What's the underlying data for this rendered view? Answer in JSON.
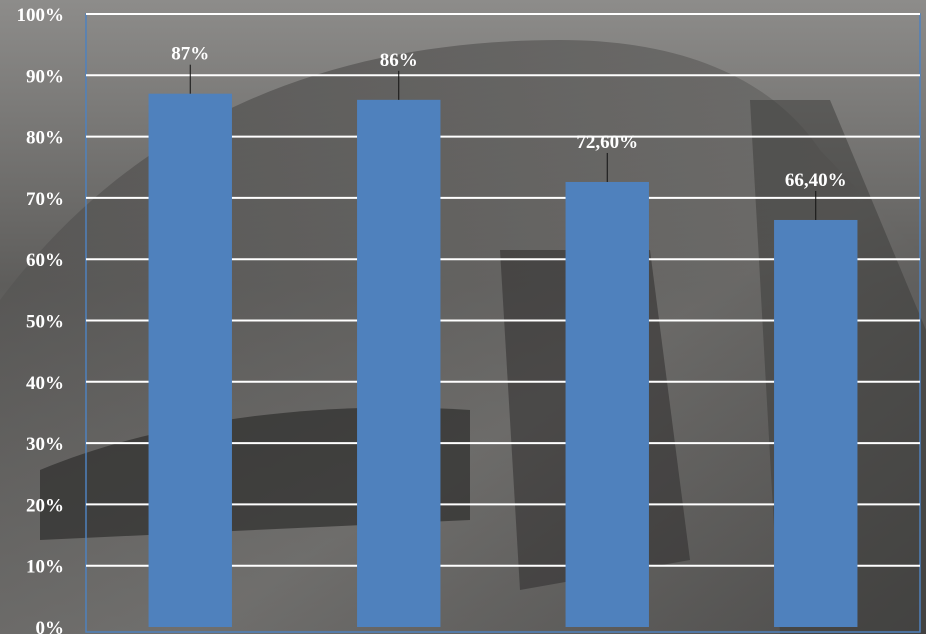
{
  "chart_data": {
    "type": "bar",
    "categories": [
      "",
      "",
      "",
      ""
    ],
    "values": [
      87,
      86,
      72.6,
      66.4
    ],
    "data_labels": [
      "87%",
      "86%",
      "72,60%",
      "66,40%"
    ],
    "title": "",
    "xlabel": "",
    "ylabel": "",
    "ylim": [
      0,
      100
    ],
    "yticks": [
      0,
      10,
      20,
      30,
      40,
      50,
      60,
      70,
      80,
      90,
      100
    ],
    "ytick_labels": [
      "0%",
      "10%",
      "20%",
      "30%",
      "40%",
      "50%",
      "60%",
      "70%",
      "80%",
      "90%",
      "100%"
    ],
    "grid": true,
    "legend": "none",
    "colors": {
      "bar": "#4f81bd",
      "gridline": "#ffffff",
      "text": "#ffffff",
      "plot_border": "#4f81bd"
    }
  }
}
